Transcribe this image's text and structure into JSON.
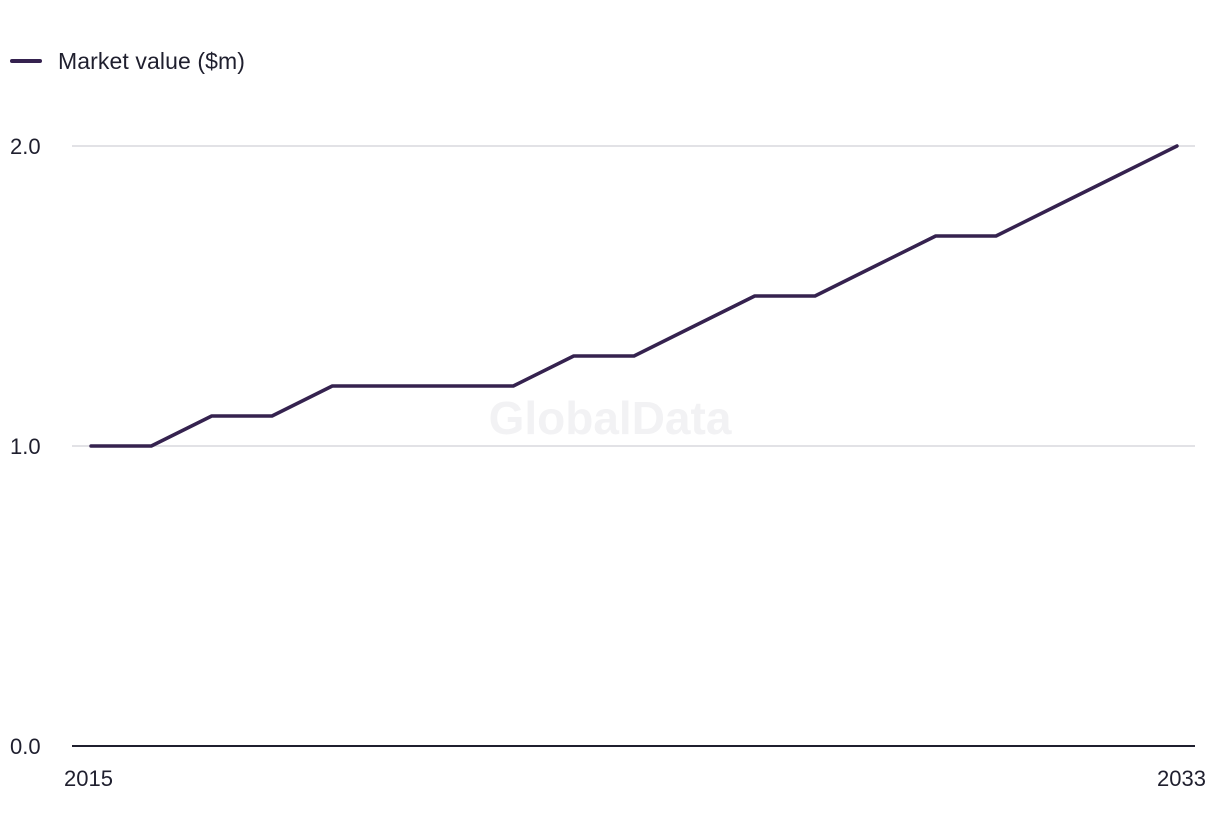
{
  "legend": {
    "label": "Market value ($m)"
  },
  "watermark": "GlobalData",
  "colors": {
    "series": "#35224f",
    "grid": "#d9d9de",
    "axis": "#1f1f2e",
    "text": "#1f1f2e"
  },
  "chart_data": {
    "type": "line",
    "title": "",
    "xlabel": "",
    "ylabel": "",
    "x": [
      2015,
      2016,
      2017,
      2018,
      2019,
      2020,
      2021,
      2022,
      2023,
      2024,
      2025,
      2026,
      2027,
      2028,
      2029,
      2030,
      2031,
      2032,
      2033
    ],
    "series": [
      {
        "name": "Market value ($m)",
        "values": [
          1.0,
          1.0,
          1.1,
          1.1,
          1.2,
          1.2,
          1.2,
          1.2,
          1.3,
          1.3,
          1.4,
          1.5,
          1.5,
          1.6,
          1.7,
          1.7,
          1.8,
          1.9,
          2.0
        ]
      }
    ],
    "ylim": [
      0.0,
      2.0
    ],
    "y_ticks": [
      "0.0",
      "1.0",
      "2.0"
    ],
    "x_ticks": [
      "2015",
      "2033"
    ],
    "grid": true,
    "legend_position": "top-left"
  }
}
